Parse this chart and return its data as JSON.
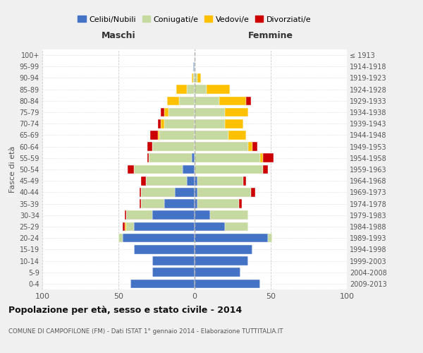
{
  "age_groups": [
    "0-4",
    "5-9",
    "10-14",
    "15-19",
    "20-24",
    "25-29",
    "30-34",
    "35-39",
    "40-44",
    "45-49",
    "50-54",
    "55-59",
    "60-64",
    "65-69",
    "70-74",
    "75-79",
    "80-84",
    "85-89",
    "90-94",
    "95-99",
    "100+"
  ],
  "birth_years": [
    "2009-2013",
    "2004-2008",
    "1999-2003",
    "1994-1998",
    "1989-1993",
    "1984-1988",
    "1979-1983",
    "1974-1978",
    "1969-1973",
    "1964-1968",
    "1959-1963",
    "1954-1958",
    "1949-1953",
    "1944-1948",
    "1939-1943",
    "1934-1938",
    "1929-1933",
    "1924-1928",
    "1919-1923",
    "1914-1918",
    "≤ 1913"
  ],
  "males": {
    "celibi": [
      42,
      28,
      28,
      40,
      47,
      40,
      28,
      20,
      13,
      5,
      8,
      2,
      0,
      0,
      0,
      0,
      0,
      0,
      0,
      1,
      0
    ],
    "coniugati": [
      0,
      0,
      0,
      0,
      3,
      5,
      17,
      15,
      22,
      27,
      32,
      28,
      28,
      23,
      20,
      17,
      10,
      5,
      1,
      0,
      0
    ],
    "vedovi": [
      0,
      0,
      0,
      0,
      0,
      1,
      0,
      0,
      0,
      0,
      0,
      0,
      0,
      1,
      2,
      3,
      8,
      7,
      1,
      0,
      0
    ],
    "divorziati": [
      0,
      0,
      0,
      0,
      0,
      1,
      1,
      1,
      1,
      3,
      4,
      1,
      3,
      5,
      2,
      2,
      0,
      0,
      0,
      0,
      0
    ]
  },
  "females": {
    "nubili": [
      43,
      30,
      35,
      38,
      48,
      20,
      10,
      2,
      2,
      2,
      0,
      0,
      0,
      0,
      0,
      0,
      0,
      0,
      0,
      0,
      0
    ],
    "coniugate": [
      0,
      0,
      0,
      0,
      3,
      15,
      25,
      27,
      35,
      30,
      45,
      43,
      35,
      22,
      20,
      20,
      16,
      8,
      2,
      0,
      0
    ],
    "vedove": [
      0,
      0,
      0,
      0,
      0,
      0,
      0,
      0,
      0,
      0,
      0,
      2,
      3,
      12,
      12,
      15,
      18,
      15,
      2,
      0,
      0
    ],
    "divorziate": [
      0,
      0,
      0,
      0,
      0,
      0,
      0,
      2,
      3,
      2,
      3,
      7,
      3,
      0,
      0,
      0,
      3,
      0,
      0,
      0,
      0
    ]
  },
  "colors": {
    "celibi": "#4472c4",
    "coniugati": "#c5d9a0",
    "vedovi": "#ffc000",
    "divorziati": "#cc0000"
  },
  "title": "Popolazione per età, sesso e stato civile - 2014",
  "subtitle": "COMUNE DI CAMPOFILONE (FM) - Dati ISTAT 1° gennaio 2014 - Elaborazione TUTTITALIA.IT",
  "ylabel_left": "Fasce di età",
  "xlabel_left": "Maschi",
  "xlabel_right": "Femmine",
  "xlim": 100,
  "bg_color": "#f0f0f0",
  "plot_bg_color": "#ffffff",
  "legend_labels": [
    "Celibi/Nubili",
    "Coniugati/e",
    "Vedovi/e",
    "Divorziati/e"
  ]
}
